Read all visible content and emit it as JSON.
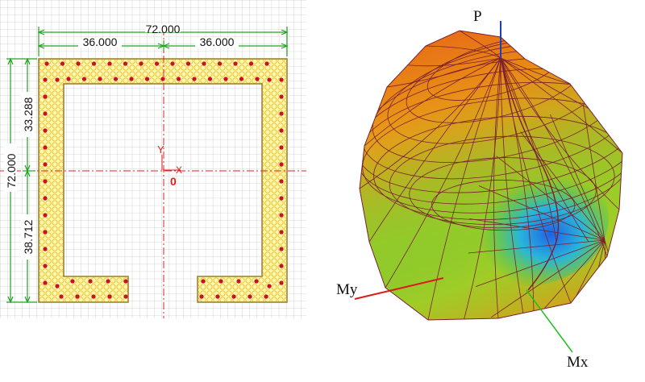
{
  "section": {
    "width_dim": "72.000",
    "left_half_dim": "36.000",
    "right_half_dim": "36.000",
    "height_dim": "72.000",
    "upper_dim": "33.288",
    "lower_dim": "38.712",
    "axis_y_label": "Y",
    "axis_x_label": "X",
    "origin_label": "0"
  },
  "surface": {
    "axis_p_label": "P",
    "axis_my_label": "My",
    "axis_mx_label": "Mx"
  },
  "colors": {
    "grid": "#c9c9c9",
    "dim_line": "#22a322",
    "section_fill": "#fff6a8",
    "section_edge": "#9a7a30",
    "rebar": "#c8102e",
    "crosshair": "#e02020",
    "mesh_line": "#7a1f2e",
    "axis_p": "#1f3fbf",
    "axis_my": "#d91e1e",
    "axis_mx": "#1fbf1f"
  }
}
